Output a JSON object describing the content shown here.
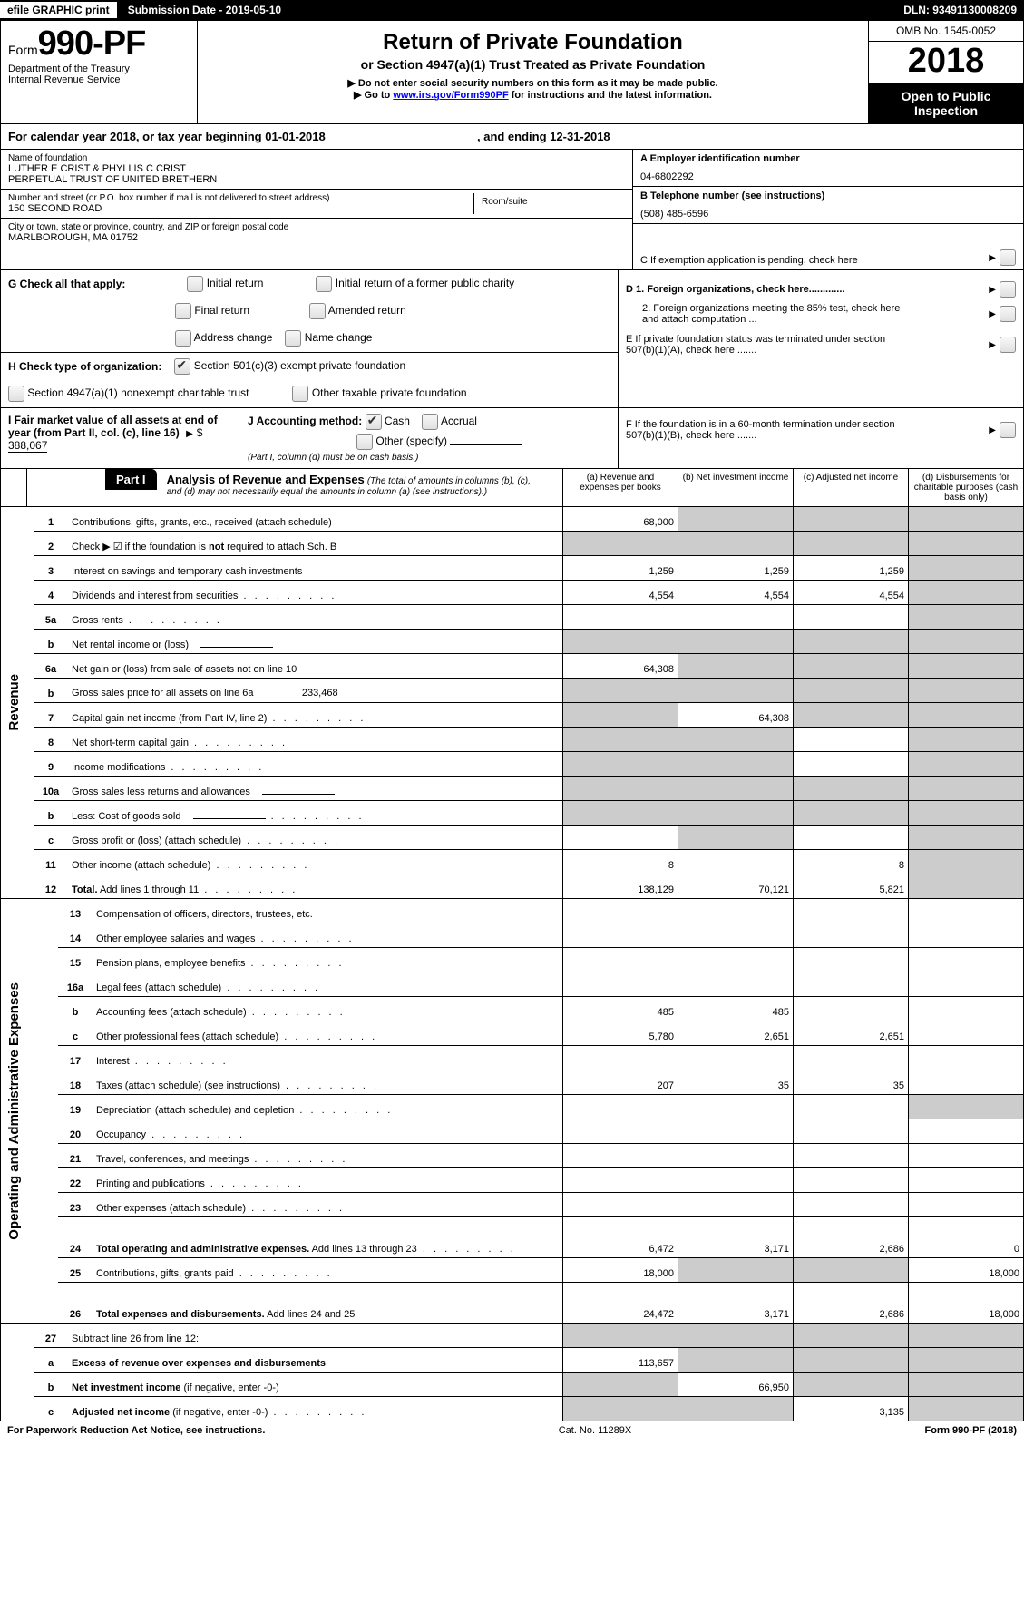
{
  "top": {
    "efile": "efile GRAPHIC print",
    "submission_label": "Submission Date - ",
    "submission_date": "2019-05-10",
    "dln_label": "DLN: ",
    "dln": "93491130008209"
  },
  "header": {
    "form_prefix": "Form",
    "form_no": "990-PF",
    "dept": "Department of the Treasury",
    "irs": "Internal Revenue Service",
    "title1": "Return of Private Foundation",
    "title2": "or Section 4947(a)(1) Trust Treated as Private Foundation",
    "notice1": "Do not enter social security numbers on this form as it may be made public.",
    "notice2_pre": "Go to ",
    "notice2_link": "www.irs.gov/Form990PF",
    "notice2_post": " for instructions and the latest information.",
    "omb": "OMB No. 1545-0052",
    "year": "2018",
    "open": "Open to Public Inspection"
  },
  "calyear": {
    "pre": "For calendar year 2018, or tax year beginning ",
    "begin": "01-01-2018",
    "mid": " , and ending ",
    "end": "12-31-2018"
  },
  "entity": {
    "name_label": "Name of foundation",
    "name1": "LUTHER E CRIST & PHYLLIS C CRIST",
    "name2": "PERPETUAL TRUST OF UNITED BRETHERN",
    "addr_label": "Number and street (or P.O. box number if mail is not delivered to street address)",
    "room_label": "Room/suite",
    "addr": "150 SECOND ROAD",
    "city_label": "City or town, state or province, country, and ZIP or foreign postal code",
    "city": "MARLBOROUGH, MA  01752"
  },
  "rightinfo": {
    "a_label": "A Employer identification number",
    "a_val": "04-6802292",
    "b_label": "B Telephone number (see instructions)",
    "b_val": "(508) 485-6596",
    "c_label": "C  If exemption application is pending, check here",
    "d1": "D 1. Foreign organizations, check here.............",
    "d2": "2. Foreign organizations meeting the 85% test, check here and attach computation ...",
    "e": "E   If private foundation status was terminated under section 507(b)(1)(A), check here .......",
    "f": "F   If the foundation is in a 60-month termination under section 507(b)(1)(B), check here ......."
  },
  "g": {
    "label": "G Check all that apply:",
    "opts": [
      "Initial return",
      "Initial return of a former public charity",
      "Final return",
      "Amended return",
      "Address change",
      "Name change"
    ]
  },
  "h": {
    "label": "H Check type of organization:",
    "opt1": "Section 501(c)(3) exempt private foundation",
    "opt2": "Section 4947(a)(1) nonexempt charitable trust",
    "opt3": "Other taxable private foundation"
  },
  "i": {
    "label": "I Fair market value of all assets at end of year (from Part II, col. (c), line 16)",
    "val": "388,067"
  },
  "j": {
    "label": "J Accounting method:",
    "cash": "Cash",
    "accrual": "Accrual",
    "other": "Other (specify)",
    "note": "(Part I, column (d) must be on cash basis.)"
  },
  "part1": {
    "badge": "Part I",
    "title": "Analysis of Revenue and Expenses",
    "note": "(The total of amounts in columns (b), (c), and (d) may not necessarily equal the amounts in column (a) (see instructions).)",
    "cols": {
      "a": "(a)    Revenue and expenses per books",
      "b": "(b)    Net investment income",
      "c": "(c)    Adjusted net income",
      "d": "(d)    Disbursements for charitable purposes (cash basis only)"
    }
  },
  "side": {
    "rev": "Revenue",
    "exp": "Operating and Administrative Expenses"
  },
  "rows": [
    {
      "n": "1",
      "desc": "Contributions, gifts, grants, etc., received (attach schedule)",
      "a": "68,000",
      "b": "",
      "c": "",
      "d": "",
      "grey": [
        "b",
        "c",
        "d"
      ]
    },
    {
      "n": "2",
      "desc": "Check ▶ ☑ if the foundation is <b>not</b> required to attach Sch. B",
      "a": "",
      "b": "",
      "c": "",
      "d": "",
      "grey": [
        "a",
        "b",
        "c",
        "d"
      ]
    },
    {
      "n": "3",
      "desc": "Interest on savings and temporary cash investments",
      "a": "1,259",
      "b": "1,259",
      "c": "1,259",
      "d": "",
      "grey": [
        "d"
      ]
    },
    {
      "n": "4",
      "desc": "Dividends and interest from securities",
      "dots": true,
      "a": "4,554",
      "b": "4,554",
      "c": "4,554",
      "d": "",
      "grey": [
        "d"
      ]
    },
    {
      "n": "5a",
      "desc": "Gross rents",
      "dots": true,
      "a": "",
      "b": "",
      "c": "",
      "d": "",
      "grey": [
        "d"
      ]
    },
    {
      "n": "b",
      "desc": "Net rental income or (loss)",
      "inline": "",
      "a": "",
      "b": "",
      "c": "",
      "d": "",
      "grey": [
        "a",
        "b",
        "c",
        "d"
      ]
    },
    {
      "n": "6a",
      "desc": "Net gain or (loss) from sale of assets not on line 10",
      "a": "64,308",
      "b": "",
      "c": "",
      "d": "",
      "grey": [
        "b",
        "c",
        "d"
      ]
    },
    {
      "n": "b",
      "desc": "Gross sales price for all assets on line 6a",
      "inline": "233,468",
      "a": "",
      "b": "",
      "c": "",
      "d": "",
      "grey": [
        "a",
        "b",
        "c",
        "d"
      ]
    },
    {
      "n": "7",
      "desc": "Capital gain net income (from Part IV, line 2)",
      "dots": true,
      "a": "",
      "b": "64,308",
      "c": "",
      "d": "",
      "grey": [
        "a",
        "c",
        "d"
      ]
    },
    {
      "n": "8",
      "desc": "Net short-term capital gain",
      "dots": true,
      "a": "",
      "b": "",
      "c": "",
      "d": "",
      "grey": [
        "a",
        "b",
        "d"
      ]
    },
    {
      "n": "9",
      "desc": "Income modifications",
      "dots": true,
      "a": "",
      "b": "",
      "c": "",
      "d": "",
      "grey": [
        "a",
        "b",
        "d"
      ]
    },
    {
      "n": "10a",
      "desc": "Gross sales less returns and allowances",
      "inline": "",
      "a": "",
      "b": "",
      "c": "",
      "d": "",
      "grey": [
        "a",
        "b",
        "c",
        "d"
      ]
    },
    {
      "n": "b",
      "desc": "Less: Cost of goods sold",
      "dots": true,
      "inline": "",
      "a": "",
      "b": "",
      "c": "",
      "d": "",
      "grey": [
        "a",
        "b",
        "c",
        "d"
      ]
    },
    {
      "n": "c",
      "desc": "Gross profit or (loss) (attach schedule)",
      "dots": true,
      "a": "",
      "b": "",
      "c": "",
      "d": "",
      "grey": [
        "b",
        "d"
      ]
    },
    {
      "n": "11",
      "desc": "Other income (attach schedule)",
      "dots": true,
      "a": "8",
      "b": "",
      "c": "8",
      "d": "",
      "grey": [
        "d"
      ]
    },
    {
      "n": "12",
      "desc": "<b>Total.</b> Add lines 1 through 11",
      "dots": true,
      "a": "138,129",
      "b": "70,121",
      "c": "5,821",
      "d": "",
      "grey": [
        "d"
      ]
    }
  ],
  "erows": [
    {
      "n": "13",
      "desc": "Compensation of officers, directors, trustees, etc.",
      "a": "",
      "b": "",
      "c": "",
      "d": ""
    },
    {
      "n": "14",
      "desc": "Other employee salaries and wages",
      "dots": true,
      "a": "",
      "b": "",
      "c": "",
      "d": ""
    },
    {
      "n": "15",
      "desc": "Pension plans, employee benefits",
      "dots": true,
      "a": "",
      "b": "",
      "c": "",
      "d": ""
    },
    {
      "n": "16a",
      "desc": "Legal fees (attach schedule)",
      "dots": true,
      "a": "",
      "b": "",
      "c": "",
      "d": ""
    },
    {
      "n": "b",
      "desc": "Accounting fees (attach schedule)",
      "dots": true,
      "a": "485",
      "b": "485",
      "c": "",
      "d": ""
    },
    {
      "n": "c",
      "desc": "Other professional fees (attach schedule)",
      "dots": true,
      "a": "5,780",
      "b": "2,651",
      "c": "2,651",
      "d": ""
    },
    {
      "n": "17",
      "desc": "Interest",
      "dots": true,
      "a": "",
      "b": "",
      "c": "",
      "d": ""
    },
    {
      "n": "18",
      "desc": "Taxes (attach schedule) (see instructions)",
      "dots": true,
      "a": "207",
      "b": "35",
      "c": "35",
      "d": ""
    },
    {
      "n": "19",
      "desc": "Depreciation (attach schedule) and depletion",
      "dots": true,
      "a": "",
      "b": "",
      "c": "",
      "d": "",
      "grey": [
        "d"
      ]
    },
    {
      "n": "20",
      "desc": "Occupancy",
      "dots": true,
      "a": "",
      "b": "",
      "c": "",
      "d": ""
    },
    {
      "n": "21",
      "desc": "Travel, conferences, and meetings",
      "dots": true,
      "a": "",
      "b": "",
      "c": "",
      "d": ""
    },
    {
      "n": "22",
      "desc": "Printing and publications",
      "dots": true,
      "a": "",
      "b": "",
      "c": "",
      "d": ""
    },
    {
      "n": "23",
      "desc": "Other expenses (attach schedule)",
      "dots": true,
      "a": "",
      "b": "",
      "c": "",
      "d": ""
    },
    {
      "n": "24",
      "desc": "<b>Total operating and administrative expenses.</b> Add lines 13 through 23",
      "dots": true,
      "a": "6,472",
      "b": "3,171",
      "c": "2,686",
      "d": "0",
      "tall": true
    },
    {
      "n": "25",
      "desc": "Contributions, gifts, grants paid",
      "dots": true,
      "a": "18,000",
      "b": "",
      "c": "",
      "d": "18,000",
      "grey": [
        "b",
        "c"
      ]
    },
    {
      "n": "26",
      "desc": "<b>Total expenses and disbursements.</b> Add lines 24 and 25",
      "a": "24,472",
      "b": "3,171",
      "c": "2,686",
      "d": "18,000",
      "tall": true
    }
  ],
  "srows": [
    {
      "n": "27",
      "desc": "Subtract line 26 from line 12:",
      "a": "",
      "b": "",
      "c": "",
      "d": "",
      "grey": [
        "a",
        "b",
        "c",
        "d"
      ]
    },
    {
      "n": "a",
      "desc": "<b>Excess of revenue over expenses and disbursements</b>",
      "a": "113,657",
      "b": "",
      "c": "",
      "d": "",
      "grey": [
        "b",
        "c",
        "d"
      ]
    },
    {
      "n": "b",
      "desc": "<b>Net investment income</b> (if negative, enter -0-)",
      "a": "",
      "b": "66,950",
      "c": "",
      "d": "",
      "grey": [
        "a",
        "c",
        "d"
      ]
    },
    {
      "n": "c",
      "desc": "<b>Adjusted net income</b> (if negative, enter -0-)",
      "dots": true,
      "a": "",
      "b": "",
      "c": "3,135",
      "d": "",
      "grey": [
        "a",
        "b",
        "d"
      ]
    }
  ],
  "footer": {
    "left": "For Paperwork Reduction Act Notice, see instructions.",
    "mid": "Cat. No. 11289X",
    "right": "Form 990-PF (2018)"
  }
}
